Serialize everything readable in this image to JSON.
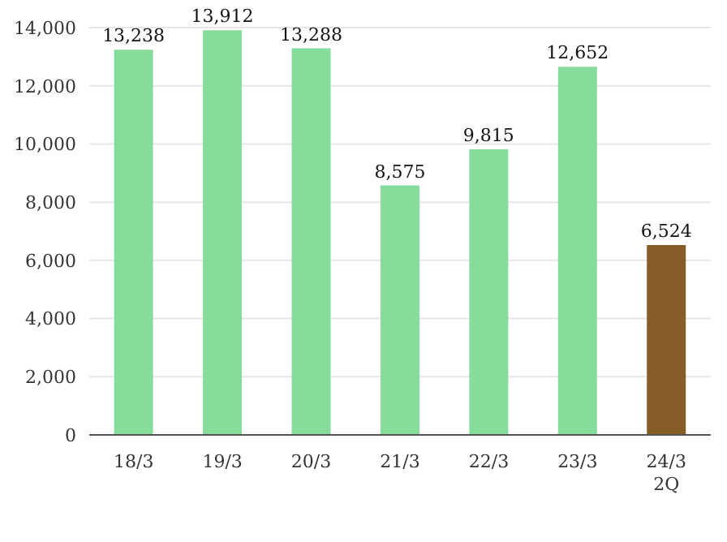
{
  "chart_data": {
    "type": "bar",
    "categories": [
      "18/3",
      "19/3",
      "20/3",
      "21/3",
      "22/3",
      "23/3",
      "24/3\n2Q"
    ],
    "values": [
      13238,
      13912,
      13288,
      8575,
      9815,
      12652,
      6524
    ],
    "colors": [
      "#86dc9a",
      "#86dc9a",
      "#86dc9a",
      "#86dc9a",
      "#86dc9a",
      "#86dc9a",
      "#875d27"
    ],
    "value_labels": [
      "13,238",
      "13,912",
      "13,288",
      "8,575",
      "9,815",
      "12,652",
      "6,524"
    ],
    "ylim": [
      0,
      14000
    ],
    "yticks": [
      {
        "value": 0,
        "label": "0"
      },
      {
        "value": 2000,
        "label": "2,000"
      },
      {
        "value": 4000,
        "label": "4,000"
      },
      {
        "value": 6000,
        "label": "6,000"
      },
      {
        "value": 8000,
        "label": "8,000"
      },
      {
        "value": 10000,
        "label": "10,000"
      },
      {
        "value": 12000,
        "label": "12,000"
      },
      {
        "value": 14000,
        "label": "14,000"
      }
    ],
    "grid": "y"
  }
}
